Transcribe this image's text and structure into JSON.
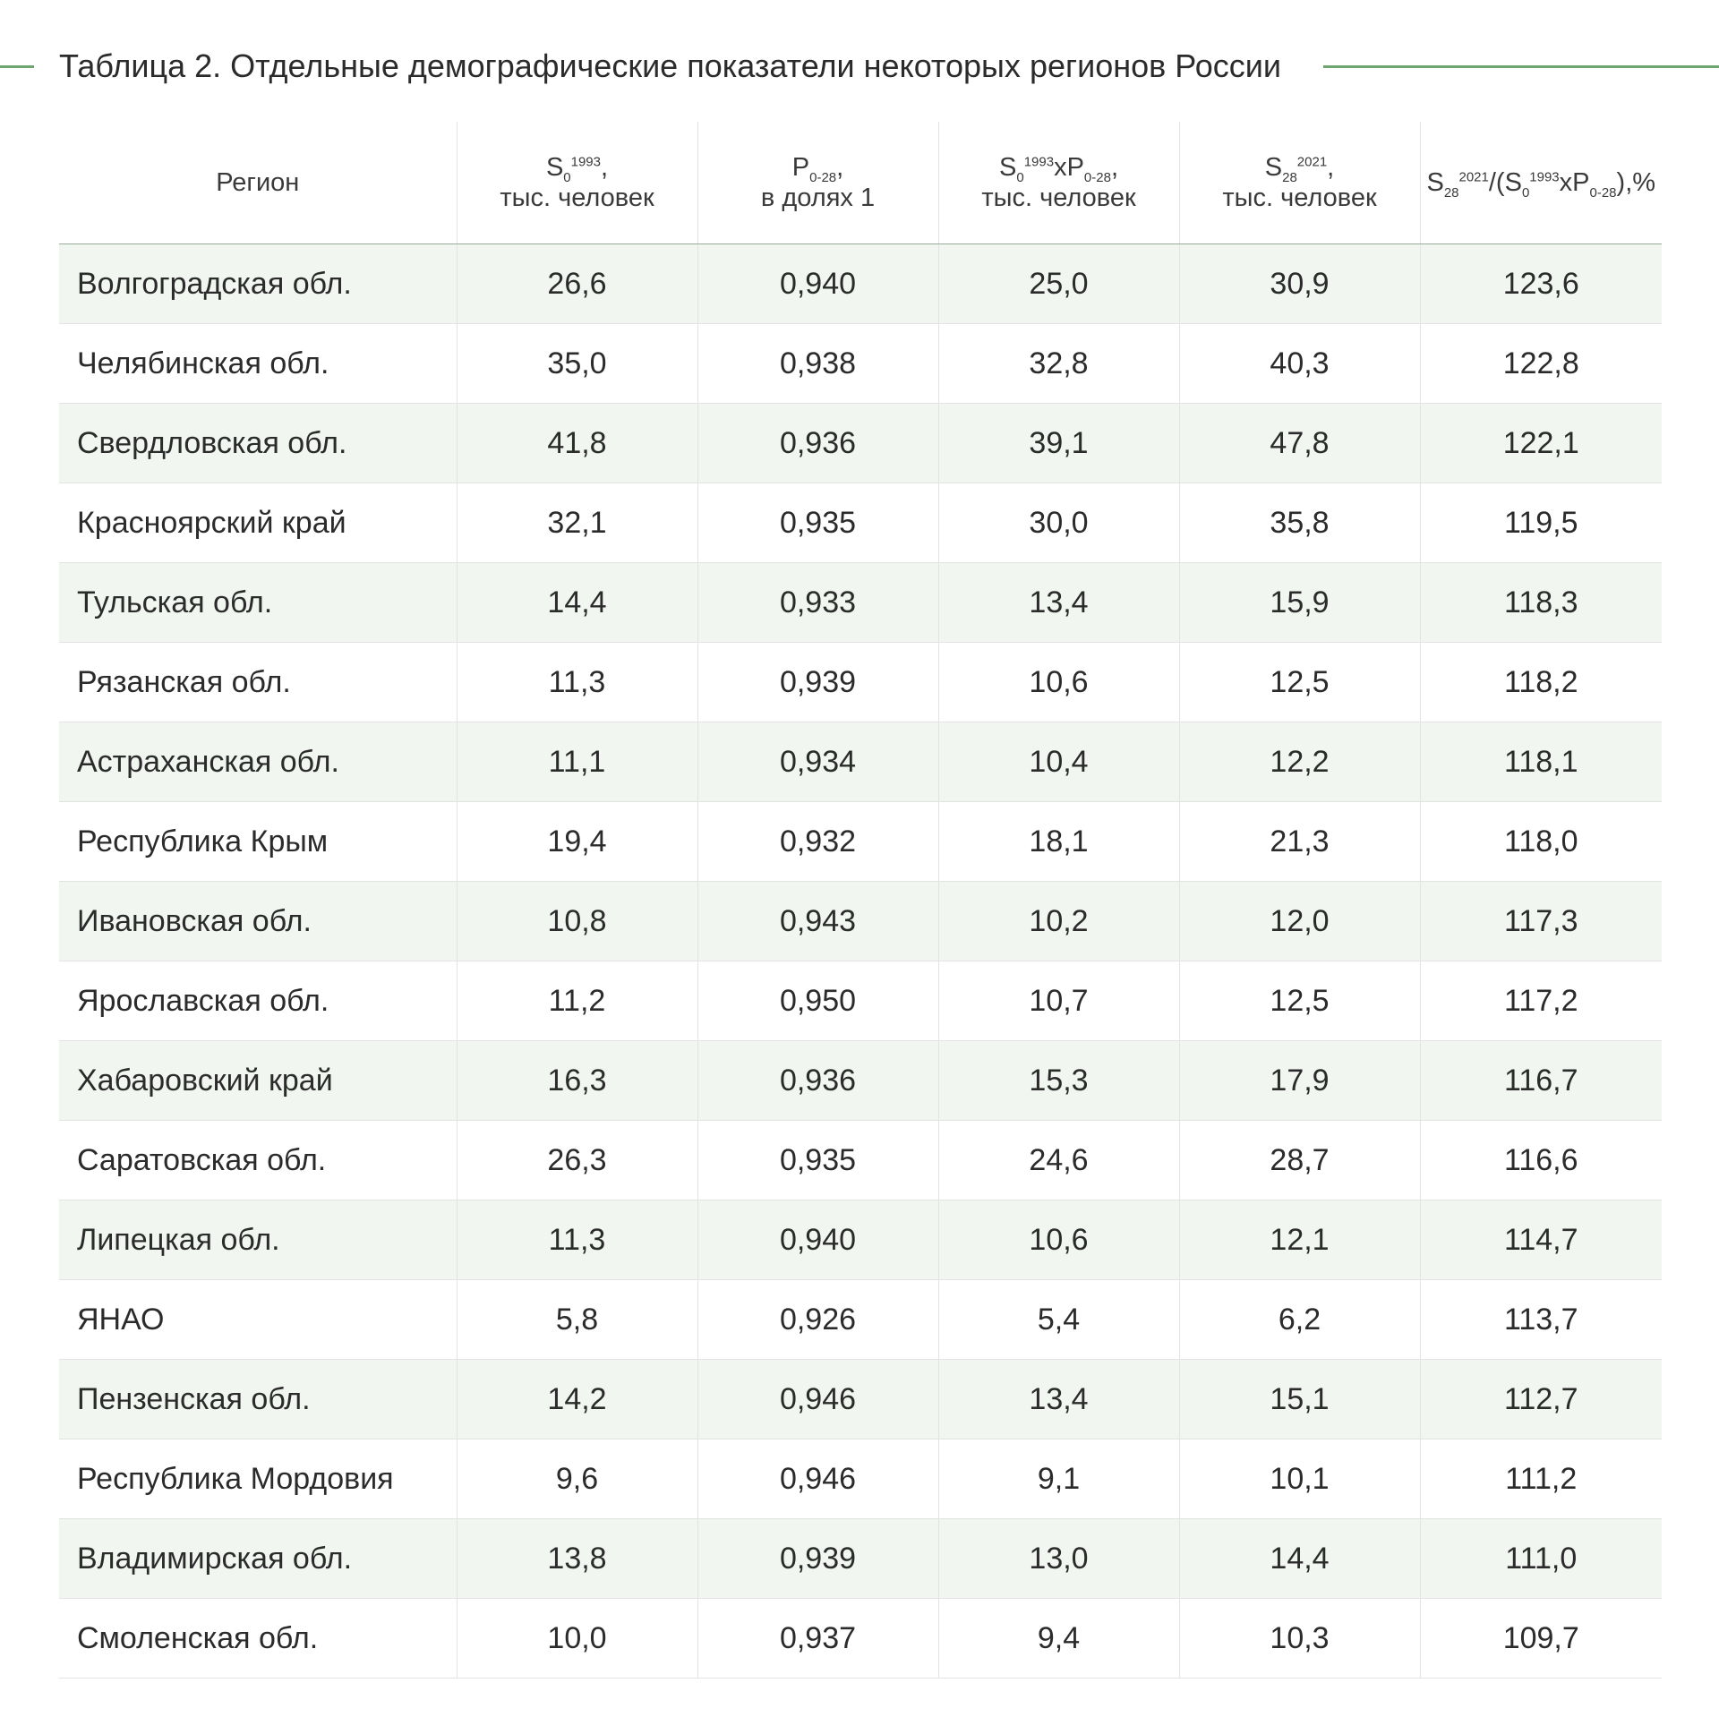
{
  "title": "Таблица 2. Отдельные демографические показатели некоторых регионов России",
  "colors": {
    "accent_line": "#6fa66f",
    "stripe": "#f1f6f1"
  },
  "header": {
    "region": "Регион",
    "col1_sym": "S",
    "col1_sub": "0",
    "col1_sup": "1993",
    "col1_tail": ",",
    "col1_unit": "тыс. человек",
    "col2_sym": "P",
    "col2_sub": "0-28",
    "col2_tail": ",",
    "col2_unit": "в долях 1",
    "col3_sym1": "S",
    "col3_sub1": "0",
    "col3_sup1": "1993",
    "col3_mid": "xP",
    "col3_sub2": "0-28",
    "col3_tail": ",",
    "col3_unit": "тыс. человек",
    "col4_sym": "S",
    "col4_sub": "28",
    "col4_sup": "2021",
    "col4_tail": ",",
    "col4_unit": "тыс. человек",
    "col5_s1": "S",
    "col5_sub1": "28",
    "col5_sup1": "2021",
    "col5_open": "/(S",
    "col5_sub2": "0",
    "col5_sup2": "1993",
    "col5_mid": "xP",
    "col5_sub3": "0-28",
    "col5_close": "),%"
  },
  "rows": [
    {
      "region": "Волгоградская обл.",
      "s0": "26,6",
      "p": "0,940",
      "sp": "25,0",
      "s28": "30,9",
      "ratio": "123,6"
    },
    {
      "region": "Челябинская обл.",
      "s0": "35,0",
      "p": "0,938",
      "sp": "32,8",
      "s28": "40,3",
      "ratio": "122,8"
    },
    {
      "region": "Свердловская обл.",
      "s0": "41,8",
      "p": "0,936",
      "sp": "39,1",
      "s28": "47,8",
      "ratio": "122,1"
    },
    {
      "region": "Красноярский край",
      "s0": "32,1",
      "p": "0,935",
      "sp": "30,0",
      "s28": "35,8",
      "ratio": "119,5"
    },
    {
      "region": "Тульская обл.",
      "s0": "14,4",
      "p": "0,933",
      "sp": "13,4",
      "s28": "15,9",
      "ratio": "118,3"
    },
    {
      "region": "Рязанская обл.",
      "s0": "11,3",
      "p": "0,939",
      "sp": "10,6",
      "s28": "12,5",
      "ratio": "118,2"
    },
    {
      "region": "Астраханская обл.",
      "s0": "11,1",
      "p": "0,934",
      "sp": "10,4",
      "s28": "12,2",
      "ratio": "118,1"
    },
    {
      "region": "Республика Крым",
      "s0": "19,4",
      "p": "0,932",
      "sp": "18,1",
      "s28": "21,3",
      "ratio": "118,0"
    },
    {
      "region": "Ивановская обл.",
      "s0": "10,8",
      "p": "0,943",
      "sp": "10,2",
      "s28": "12,0",
      "ratio": "117,3"
    },
    {
      "region": "Ярославская обл.",
      "s0": "11,2",
      "p": "0,950",
      "sp": "10,7",
      "s28": "12,5",
      "ratio": "117,2"
    },
    {
      "region": "Хабаровский край",
      "s0": "16,3",
      "p": "0,936",
      "sp": "15,3",
      "s28": "17,9",
      "ratio": "116,7"
    },
    {
      "region": "Саратовская обл.",
      "s0": "26,3",
      "p": "0,935",
      "sp": "24,6",
      "s28": "28,7",
      "ratio": "116,6"
    },
    {
      "region": "Липецкая обл.",
      "s0": "11,3",
      "p": "0,940",
      "sp": "10,6",
      "s28": "12,1",
      "ratio": "114,7"
    },
    {
      "region": "ЯНАО",
      "s0": "5,8",
      "p": "0,926",
      "sp": "5,4",
      "s28": "6,2",
      "ratio": "113,7"
    },
    {
      "region": "Пензенская обл.",
      "s0": "14,2",
      "p": "0,946",
      "sp": "13,4",
      "s28": "15,1",
      "ratio": "112,7"
    },
    {
      "region": "Республика Мордовия",
      "s0": "9,6",
      "p": "0,946",
      "sp": "9,1",
      "s28": "10,1",
      "ratio": "111,2"
    },
    {
      "region": "Владимирская обл.",
      "s0": "13,8",
      "p": "0,939",
      "sp": "13,0",
      "s28": "14,4",
      "ratio": "111,0"
    },
    {
      "region": "Смоленская обл.",
      "s0": "10,0",
      "p": "0,937",
      "sp": "9,4",
      "s28": "10,3",
      "ratio": "109,7"
    }
  ]
}
